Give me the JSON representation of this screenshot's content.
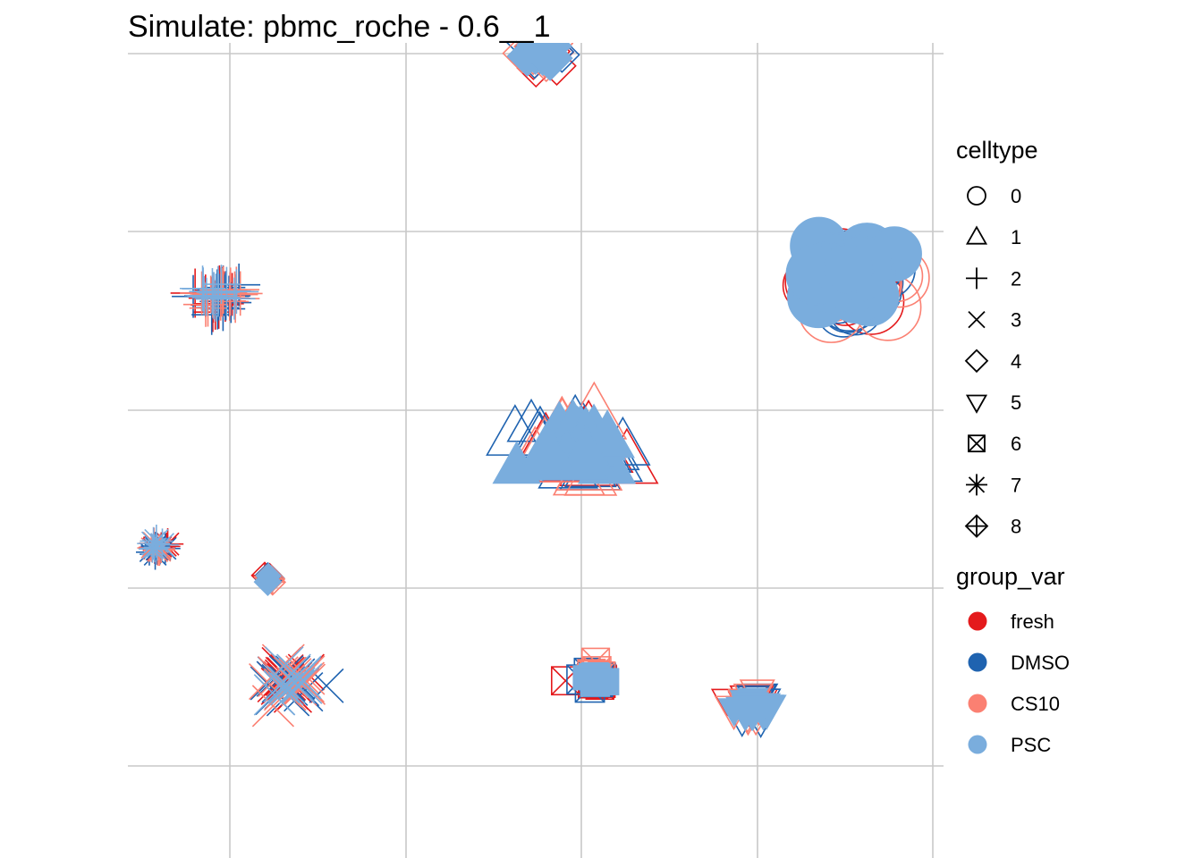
{
  "chart_data": {
    "type": "scatter",
    "title": "Simulate: pbmc_roche - 0.6__1",
    "xlabel": "",
    "ylabel": "",
    "xlim": [
      0,
      10
    ],
    "ylim": [
      0,
      10
    ],
    "grid": true,
    "axis_ticks_visible": false,
    "legend_placement": "right",
    "legend_shape": {
      "title": "celltype",
      "entries": [
        {
          "label": "0",
          "shape": "circle-open"
        },
        {
          "label": "1",
          "shape": "triangle-up-open"
        },
        {
          "label": "2",
          "shape": "plus"
        },
        {
          "label": "3",
          "shape": "cross"
        },
        {
          "label": "4",
          "shape": "diamond-open"
        },
        {
          "label": "5",
          "shape": "triangle-down-open"
        },
        {
          "label": "6",
          "shape": "square-cross"
        },
        {
          "label": "7",
          "shape": "asterisk"
        },
        {
          "label": "8",
          "shape": "diamond-plus"
        }
      ]
    },
    "legend_color": {
      "title": "group_var",
      "entries": [
        {
          "label": "fresh",
          "color": "#e41a1c"
        },
        {
          "label": "DMSO",
          "color": "#1f63b0"
        },
        {
          "label": "CS10",
          "color": "#fb8072"
        },
        {
          "label": "PSC",
          "color": "#7aaddd"
        }
      ]
    },
    "clusters": [
      {
        "celltype": "0",
        "x": 8.2,
        "y": 9.3,
        "spread": 0.22,
        "n": 110
      },
      {
        "celltype": "1",
        "x": 5.1,
        "y": 6.4,
        "spread": 0.2,
        "n": 100
      },
      {
        "celltype": "2",
        "x": 1.0,
        "y": 9.0,
        "spread": 0.12,
        "n": 60
      },
      {
        "celltype": "3",
        "x": 1.8,
        "y": 2.4,
        "spread": 0.14,
        "n": 60
      },
      {
        "celltype": "4",
        "x": 4.7,
        "y": 13.2,
        "spread": 0.1,
        "n": 40
      },
      {
        "celltype": "5",
        "x": 7.1,
        "y": 2.0,
        "spread": 0.1,
        "n": 40
      },
      {
        "celltype": "6",
        "x": 5.3,
        "y": 2.5,
        "spread": 0.08,
        "n": 35
      },
      {
        "celltype": "7",
        "x": 0.3,
        "y": 4.7,
        "spread": 0.06,
        "n": 25
      },
      {
        "celltype": "8",
        "x": 1.6,
        "y": 4.2,
        "spread": 0.04,
        "n": 12
      }
    ]
  }
}
